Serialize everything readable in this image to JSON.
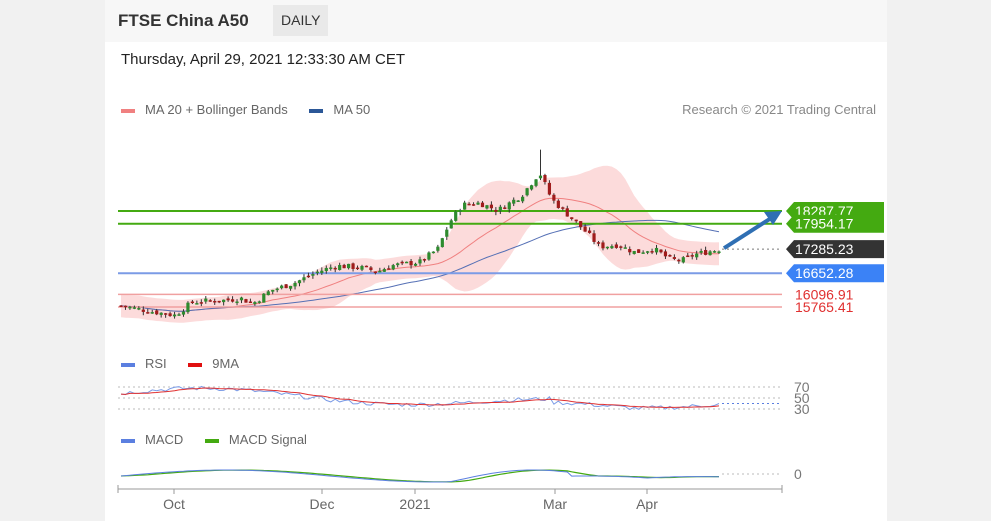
{
  "header": {
    "instrument": "FTSE China A50",
    "timeframe": "DAILY"
  },
  "timestamp": "Thursday, April 29, 2021 12:33:30 AM CET",
  "legends": {
    "main": [
      {
        "label": "MA 20 + Bollinger Bands",
        "color": "#f08080"
      },
      {
        "label": "MA 50",
        "color": "#2b5797"
      }
    ],
    "rsi": [
      {
        "label": "RSI",
        "color": "#5b7fe0"
      },
      {
        "label": "9MA",
        "color": "#e01010"
      }
    ],
    "macd": [
      {
        "label": "MACD",
        "color": "#5b7fe0"
      },
      {
        "label": "MACD Signal",
        "color": "#44aa11"
      }
    ]
  },
  "credit": "Research © 2021 Trading Central",
  "chart_data": {
    "type": "candlestick",
    "x_ticks": [
      "Oct",
      "Dec",
      "2021",
      "Mar",
      "Apr"
    ],
    "price_levels": [
      {
        "label": "18287.77",
        "value": 18287.77,
        "style": "badge",
        "color": "#44aa11"
      },
      {
        "label": "17954.17",
        "value": 17954.17,
        "style": "badge",
        "color": "#44aa11"
      },
      {
        "label": "17285.23",
        "value": 17285.23,
        "style": "badge",
        "color": "#333333"
      },
      {
        "label": "16652.28",
        "value": 16652.28,
        "style": "badge",
        "color": "#3b82f6"
      },
      {
        "label": "16096.91",
        "value": 16096.91,
        "style": "text",
        "color": "#e03030"
      },
      {
        "label": "15765.41",
        "value": 15765.41,
        "style": "text",
        "color": "#e03030"
      }
    ],
    "forecast": "up",
    "rsi_levels": [
      {
        "label": "70",
        "value": 70
      },
      {
        "label": "50",
        "value": 50
      },
      {
        "label": "30",
        "value": 30
      }
    ],
    "macd_levels": [
      {
        "label": "0",
        "value": 0
      }
    ]
  }
}
